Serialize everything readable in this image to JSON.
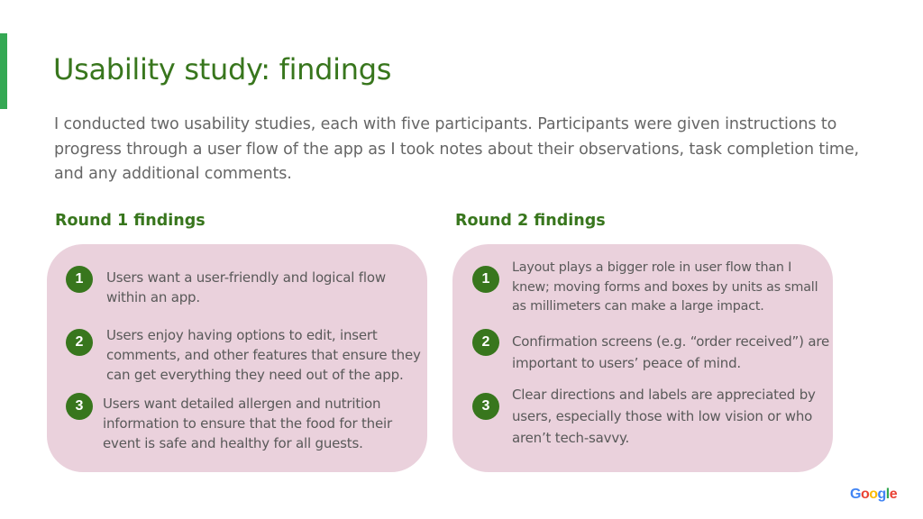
{
  "slide": {
    "title": "Usability study: findings",
    "intro": "I conducted two usability studies, each with five participants. Participants were given instructions to progress through a user flow of the app as I took notes about their observations, task completion time, and any additional comments.",
    "accent_color": "#34a853",
    "title_color": "#38761d",
    "card_color": "#ead1dc"
  },
  "rounds": [
    {
      "heading": "Round 1 findings",
      "items": [
        {
          "number": "1",
          "text": "Users want a user-friendly and logical flow within an app."
        },
        {
          "number": "2",
          "text": "Users enjoy having options to edit, insert comments, and other features that ensure they can get everything they need out of the app."
        },
        {
          "number": "3",
          "text": "Users want detailed allergen and nutrition information to ensure that the food for their event is safe and healthy for all guests."
        }
      ]
    },
    {
      "heading": "Round 2 findings",
      "items": [
        {
          "number": "1",
          "text": "Layout plays a bigger role in user flow than I knew; moving forms and boxes by units as small as millimeters can make a large impact."
        },
        {
          "number": "2",
          "text": "Confirmation screens (e.g. “order received”) are important to users’ peace of mind."
        },
        {
          "number": "3",
          "text": "Clear directions and labels are appreciated by users, especially those with low vision or who aren’t tech-savvy."
        }
      ]
    }
  ],
  "logo": {
    "text": "Google"
  }
}
